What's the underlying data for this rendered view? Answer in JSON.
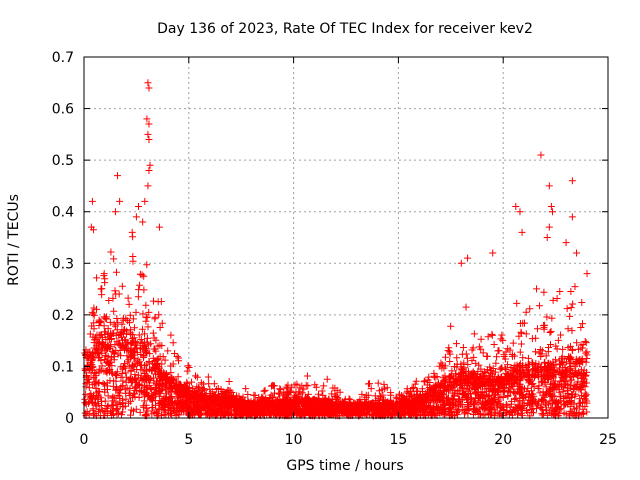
{
  "chart_data": {
    "type": "scatter",
    "title": "Day 136 of 2023, Rate Of TEC Index for receiver kev2",
    "xlabel": "GPS time / hours",
    "ylabel": "ROTI / TECUs",
    "xlim": [
      0,
      25
    ],
    "ylim": [
      0,
      0.7
    ],
    "xticks": [
      0,
      5,
      10,
      15,
      20,
      25
    ],
    "yticks": [
      0,
      0.1,
      0.2,
      0.3,
      0.4,
      0.5,
      0.6,
      0.7
    ],
    "ytick_labels": [
      "0",
      "0.1",
      "0.2",
      "0.3",
      "0.4",
      "0.5",
      "0.6",
      "0.7"
    ],
    "grid": true,
    "marker": "plus",
    "color": "#ff0000",
    "series": [
      {
        "envelope_profile": [
          {
            "x": 0.0,
            "y_typical": 0.08,
            "y_upper": 0.15
          },
          {
            "x": 0.5,
            "y_typical": 0.12,
            "y_upper": 0.28
          },
          {
            "x": 1.0,
            "y_typical": 0.13,
            "y_upper": 0.33
          },
          {
            "x": 1.5,
            "y_typical": 0.14,
            "y_upper": 0.3
          },
          {
            "x": 2.0,
            "y_typical": 0.13,
            "y_upper": 0.3
          },
          {
            "x": 2.5,
            "y_typical": 0.12,
            "y_upper": 0.37
          },
          {
            "x": 3.0,
            "y_typical": 0.1,
            "y_upper": 0.36
          },
          {
            "x": 3.5,
            "y_typical": 0.08,
            "y_upper": 0.27
          },
          {
            "x": 4.0,
            "y_typical": 0.06,
            "y_upper": 0.18
          },
          {
            "x": 4.5,
            "y_typical": 0.05,
            "y_upper": 0.15
          },
          {
            "x": 5.0,
            "y_typical": 0.04,
            "y_upper": 0.11
          },
          {
            "x": 6.0,
            "y_typical": 0.03,
            "y_upper": 0.08
          },
          {
            "x": 7.0,
            "y_typical": 0.03,
            "y_upper": 0.07
          },
          {
            "x": 8.0,
            "y_typical": 0.02,
            "y_upper": 0.05
          },
          {
            "x": 9.0,
            "y_typical": 0.025,
            "y_upper": 0.07
          },
          {
            "x": 10.0,
            "y_typical": 0.025,
            "y_upper": 0.09
          },
          {
            "x": 11.0,
            "y_typical": 0.025,
            "y_upper": 0.09
          },
          {
            "x": 12.0,
            "y_typical": 0.02,
            "y_upper": 0.06
          },
          {
            "x": 13.0,
            "y_typical": 0.02,
            "y_upper": 0.06
          },
          {
            "x": 14.0,
            "y_typical": 0.02,
            "y_upper": 0.07
          },
          {
            "x": 15.0,
            "y_typical": 0.02,
            "y_upper": 0.06
          },
          {
            "x": 16.0,
            "y_typical": 0.03,
            "y_upper": 0.08
          },
          {
            "x": 17.0,
            "y_typical": 0.05,
            "y_upper": 0.16
          },
          {
            "x": 18.0,
            "y_typical": 0.07,
            "y_upper": 0.25
          },
          {
            "x": 19.0,
            "y_typical": 0.06,
            "y_upper": 0.2
          },
          {
            "x": 20.0,
            "y_typical": 0.06,
            "y_upper": 0.17
          },
          {
            "x": 21.0,
            "y_typical": 0.08,
            "y_upper": 0.25
          },
          {
            "x": 22.0,
            "y_typical": 0.08,
            "y_upper": 0.3
          },
          {
            "x": 23.0,
            "y_typical": 0.09,
            "y_upper": 0.33
          },
          {
            "x": 24.0,
            "y_typical": 0.08,
            "y_upper": 0.2
          }
        ],
        "outliers": [
          {
            "x": 0.4,
            "y": 0.42
          },
          {
            "x": 0.35,
            "y": 0.37
          },
          {
            "x": 0.45,
            "y": 0.365
          },
          {
            "x": 1.6,
            "y": 0.47
          },
          {
            "x": 1.7,
            "y": 0.42
          },
          {
            "x": 1.5,
            "y": 0.4
          },
          {
            "x": 2.3,
            "y": 0.36
          },
          {
            "x": 2.5,
            "y": 0.39
          },
          {
            "x": 2.6,
            "y": 0.41
          },
          {
            "x": 3.05,
            "y": 0.65
          },
          {
            "x": 3.1,
            "y": 0.64
          },
          {
            "x": 3.0,
            "y": 0.58
          },
          {
            "x": 3.1,
            "y": 0.57
          },
          {
            "x": 3.05,
            "y": 0.55
          },
          {
            "x": 3.1,
            "y": 0.54
          },
          {
            "x": 3.15,
            "y": 0.49
          },
          {
            "x": 3.1,
            "y": 0.48
          },
          {
            "x": 3.05,
            "y": 0.45
          },
          {
            "x": 2.9,
            "y": 0.42
          },
          {
            "x": 2.8,
            "y": 0.38
          },
          {
            "x": 3.6,
            "y": 0.37
          },
          {
            "x": 18.0,
            "y": 0.3
          },
          {
            "x": 18.3,
            "y": 0.31
          },
          {
            "x": 19.5,
            "y": 0.32
          },
          {
            "x": 20.6,
            "y": 0.41
          },
          {
            "x": 20.8,
            "y": 0.4
          },
          {
            "x": 20.9,
            "y": 0.36
          },
          {
            "x": 21.8,
            "y": 0.51
          },
          {
            "x": 22.2,
            "y": 0.45
          },
          {
            "x": 22.3,
            "y": 0.41
          },
          {
            "x": 22.35,
            "y": 0.4
          },
          {
            "x": 22.2,
            "y": 0.37
          },
          {
            "x": 22.1,
            "y": 0.35
          },
          {
            "x": 23.3,
            "y": 0.46
          },
          {
            "x": 23.3,
            "y": 0.39
          },
          {
            "x": 23.0,
            "y": 0.34
          },
          {
            "x": 23.5,
            "y": 0.32
          },
          {
            "x": 24.0,
            "y": 0.28
          }
        ]
      }
    ]
  }
}
